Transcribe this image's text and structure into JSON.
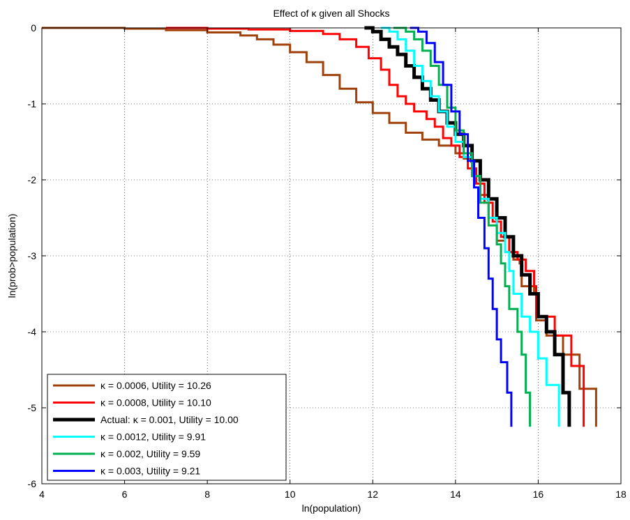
{
  "chart_data": {
    "type": "line",
    "title": "Effect of κ given all Shocks",
    "xlabel": "ln(population)",
    "ylabel": "ln(prob>population)",
    "xlim": [
      4,
      18
    ],
    "ylim": [
      -6,
      0
    ],
    "xticks": [
      4,
      6,
      8,
      10,
      12,
      14,
      16,
      18
    ],
    "yticks": [
      0,
      -1,
      -2,
      -3,
      -4,
      -5,
      -6
    ],
    "grid": true,
    "grid_style": "dotted",
    "legend_position": "bottom-left",
    "series": [
      {
        "name": "κ = 0.0006, Utility = 10.26",
        "color": "#a0400a",
        "width": 3,
        "points": [
          [
            4.0,
            0.0
          ],
          [
            5.0,
            0.0
          ],
          [
            6.0,
            -0.01
          ],
          [
            7.0,
            -0.03
          ],
          [
            8.0,
            -0.06
          ],
          [
            8.8,
            -0.1
          ],
          [
            9.2,
            -0.15
          ],
          [
            9.6,
            -0.22
          ],
          [
            10.0,
            -0.32
          ],
          [
            10.4,
            -0.45
          ],
          [
            10.8,
            -0.62
          ],
          [
            11.2,
            -0.8
          ],
          [
            11.6,
            -0.98
          ],
          [
            12.0,
            -1.12
          ],
          [
            12.4,
            -1.25
          ],
          [
            12.8,
            -1.38
          ],
          [
            13.2,
            -1.47
          ],
          [
            13.6,
            -1.55
          ],
          [
            14.0,
            -1.65
          ],
          [
            14.2,
            -1.72
          ],
          [
            14.4,
            -1.95
          ],
          [
            14.6,
            -2.2
          ],
          [
            14.8,
            -2.5
          ],
          [
            15.0,
            -2.8
          ],
          [
            15.2,
            -2.95
          ],
          [
            15.4,
            -3.05
          ],
          [
            15.55,
            -3.1
          ],
          [
            15.6,
            -3.4
          ],
          [
            15.9,
            -3.5
          ],
          [
            15.95,
            -3.85
          ],
          [
            16.2,
            -4.05
          ],
          [
            16.6,
            -4.3
          ],
          [
            17.0,
            -4.75
          ],
          [
            17.4,
            -5.25
          ]
        ]
      },
      {
        "name": "κ = 0.0008, Utility = 10.10",
        "color": "#ff0000",
        "width": 3,
        "points": [
          [
            7.0,
            0.0
          ],
          [
            8.0,
            -0.01
          ],
          [
            9.0,
            -0.02
          ],
          [
            10.0,
            -0.04
          ],
          [
            10.8,
            -0.08
          ],
          [
            11.2,
            -0.15
          ],
          [
            11.6,
            -0.25
          ],
          [
            11.9,
            -0.4
          ],
          [
            12.2,
            -0.55
          ],
          [
            12.4,
            -0.75
          ],
          [
            12.6,
            -0.9
          ],
          [
            12.8,
            -1.0
          ],
          [
            13.0,
            -1.1
          ],
          [
            13.3,
            -1.2
          ],
          [
            13.5,
            -1.3
          ],
          [
            13.7,
            -1.45
          ],
          [
            13.9,
            -1.55
          ],
          [
            14.1,
            -1.7
          ],
          [
            14.3,
            -1.85
          ],
          [
            14.5,
            -2.05
          ],
          [
            14.7,
            -2.3
          ],
          [
            14.9,
            -2.55
          ],
          [
            15.1,
            -2.75
          ],
          [
            15.3,
            -2.95
          ],
          [
            15.5,
            -3.05
          ],
          [
            15.7,
            -3.2
          ],
          [
            15.9,
            -3.4
          ],
          [
            15.95,
            -3.8
          ],
          [
            16.4,
            -4.05
          ],
          [
            16.8,
            -4.45
          ],
          [
            17.1,
            -5.25
          ]
        ]
      },
      {
        "name": "Actual: κ = 0.001, Utility = 10.00",
        "color": "#000000",
        "width": 5,
        "points": [
          [
            11.8,
            0.0
          ],
          [
            12.0,
            -0.05
          ],
          [
            12.2,
            -0.15
          ],
          [
            12.4,
            -0.25
          ],
          [
            12.6,
            -0.35
          ],
          [
            12.8,
            -0.5
          ],
          [
            13.0,
            -0.65
          ],
          [
            13.2,
            -0.8
          ],
          [
            13.4,
            -0.95
          ],
          [
            13.6,
            -1.1
          ],
          [
            13.8,
            -1.25
          ],
          [
            14.0,
            -1.4
          ],
          [
            14.2,
            -1.55
          ],
          [
            14.4,
            -1.75
          ],
          [
            14.6,
            -2.0
          ],
          [
            14.8,
            -2.25
          ],
          [
            15.0,
            -2.5
          ],
          [
            15.2,
            -2.75
          ],
          [
            15.4,
            -3.0
          ],
          [
            15.6,
            -3.25
          ],
          [
            15.8,
            -3.5
          ],
          [
            16.0,
            -3.8
          ],
          [
            16.2,
            -4.0
          ],
          [
            16.4,
            -4.3
          ],
          [
            16.6,
            -4.8
          ],
          [
            16.75,
            -5.25
          ]
        ]
      },
      {
        "name": "κ = 0.0012, Utility = 9.91",
        "color": "#00ffff",
        "width": 3,
        "points": [
          [
            12.2,
            0.0
          ],
          [
            12.4,
            -0.05
          ],
          [
            12.6,
            -0.15
          ],
          [
            12.8,
            -0.3
          ],
          [
            13.0,
            -0.5
          ],
          [
            13.2,
            -0.7
          ],
          [
            13.4,
            -0.9
          ],
          [
            13.6,
            -1.1
          ],
          [
            13.8,
            -1.3
          ],
          [
            14.0,
            -1.5
          ],
          [
            14.2,
            -1.7
          ],
          [
            14.4,
            -1.95
          ],
          [
            14.6,
            -2.25
          ],
          [
            14.8,
            -2.5
          ],
          [
            15.0,
            -2.7
          ],
          [
            15.2,
            -2.95
          ],
          [
            15.3,
            -3.2
          ],
          [
            15.4,
            -3.5
          ],
          [
            15.6,
            -3.8
          ],
          [
            15.8,
            -4.0
          ],
          [
            16.0,
            -4.35
          ],
          [
            16.2,
            -4.7
          ],
          [
            16.5,
            -5.25
          ]
        ]
      },
      {
        "name": "κ = 0.002, Utility = 9.59",
        "color": "#00b050",
        "width": 3,
        "points": [
          [
            12.5,
            0.0
          ],
          [
            12.8,
            -0.05
          ],
          [
            13.0,
            -0.15
          ],
          [
            13.2,
            -0.3
          ],
          [
            13.4,
            -0.5
          ],
          [
            13.6,
            -0.75
          ],
          [
            13.8,
            -1.05
          ],
          [
            14.0,
            -1.35
          ],
          [
            14.2,
            -1.65
          ],
          [
            14.4,
            -1.95
          ],
          [
            14.6,
            -2.3
          ],
          [
            14.8,
            -2.6
          ],
          [
            15.0,
            -2.85
          ],
          [
            15.1,
            -3.1
          ],
          [
            15.2,
            -3.4
          ],
          [
            15.3,
            -3.7
          ],
          [
            15.5,
            -4.0
          ],
          [
            15.6,
            -4.3
          ],
          [
            15.7,
            -4.8
          ],
          [
            15.8,
            -5.25
          ]
        ]
      },
      {
        "name": "κ = 0.003, Utility = 9.21",
        "color": "#0000ff",
        "width": 3,
        "points": [
          [
            12.9,
            0.0
          ],
          [
            13.1,
            -0.05
          ],
          [
            13.3,
            -0.2
          ],
          [
            13.5,
            -0.45
          ],
          [
            13.7,
            -0.75
          ],
          [
            13.9,
            -1.1
          ],
          [
            14.1,
            -1.4
          ],
          [
            14.3,
            -1.75
          ],
          [
            14.45,
            -2.1
          ],
          [
            14.55,
            -2.5
          ],
          [
            14.7,
            -2.9
          ],
          [
            14.8,
            -3.3
          ],
          [
            14.9,
            -3.7
          ],
          [
            15.0,
            -4.1
          ],
          [
            15.1,
            -4.4
          ],
          [
            15.25,
            -4.8
          ],
          [
            15.35,
            -5.25
          ]
        ]
      }
    ]
  }
}
